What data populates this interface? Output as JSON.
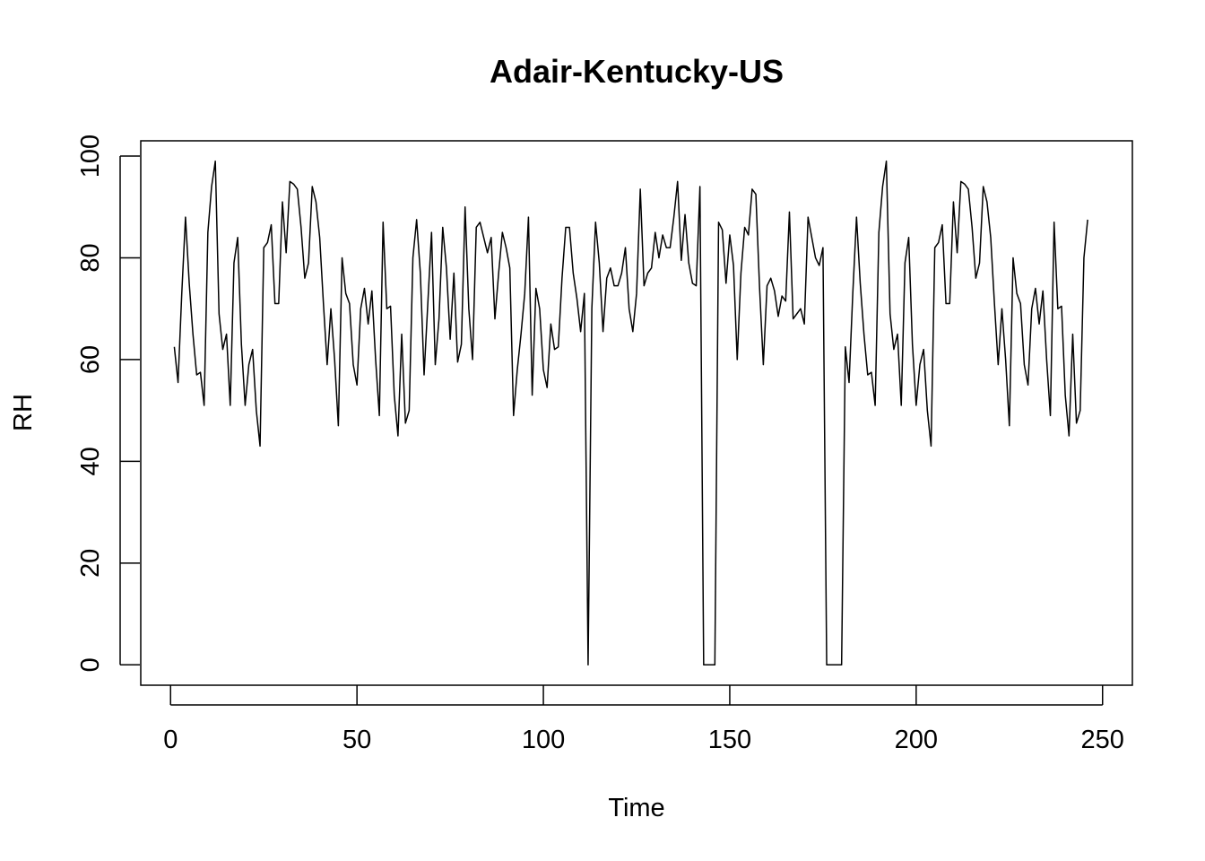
{
  "chart_data": {
    "type": "line",
    "title": "Adair-Kentucky-US",
    "xlabel": "Time",
    "ylabel": "RH",
    "xlim": [
      -8,
      258
    ],
    "ylim": [
      -4,
      103
    ],
    "xticks": [
      0,
      50,
      100,
      150,
      200,
      250
    ],
    "yticks": [
      0,
      20,
      40,
      60,
      80,
      100
    ],
    "xtick_labels": [
      "0",
      "50",
      "100",
      "150",
      "200",
      "250"
    ],
    "ytick_labels": [
      "0",
      "20",
      "40",
      "60",
      "80",
      "100"
    ],
    "grid": false,
    "legend": "none",
    "line_color": "#000000",
    "x_start": 1,
    "series": [
      {
        "values": [
          62.5,
          55.5,
          73,
          88,
          75,
          65,
          57,
          57.5,
          51,
          85,
          94,
          99,
          69,
          62,
          65,
          51,
          79,
          84,
          63,
          51,
          59,
          62,
          50,
          43,
          82,
          83,
          86.5,
          71,
          71,
          91,
          81,
          95,
          94.5,
          93.5,
          86,
          76,
          79,
          94,
          91,
          84,
          71,
          59,
          70,
          60,
          47,
          80,
          73,
          71,
          59,
          55,
          70,
          74,
          67,
          73.5,
          60,
          49,
          87,
          70,
          70.5,
          53,
          45,
          65,
          47.5,
          50,
          80,
          87.5,
          77,
          57,
          71,
          85,
          59,
          68,
          86,
          78,
          64,
          77,
          59.5,
          63,
          90,
          70,
          60,
          86,
          87,
          84,
          81,
          84,
          68,
          77,
          85,
          82,
          78,
          49,
          58,
          65,
          73,
          88,
          53,
          74,
          70,
          58,
          54.5,
          67,
          62,
          62.5,
          76,
          86,
          86,
          77,
          72,
          65.5,
          73,
          0,
          70,
          87,
          79,
          65.5,
          76,
          78,
          74.5,
          74.5,
          77,
          82,
          70,
          65.5,
          73,
          93.5,
          74.5,
          77,
          78,
          85,
          80,
          84.5,
          82,
          82,
          88,
          95,
          79.5,
          88.5,
          79,
          75,
          74.5,
          94,
          0,
          0,
          0,
          0,
          87,
          85.5,
          75,
          84.5,
          78.5,
          60,
          77,
          86,
          84.5,
          93.5,
          92.5,
          74,
          59,
          74.5,
          76,
          73.5,
          68.5,
          72.5,
          71.5,
          89,
          68,
          69,
          70,
          67,
          88,
          84,
          80,
          78.5,
          82,
          0,
          0,
          0,
          0,
          0,
          62.5,
          55.5,
          73,
          88,
          75,
          65,
          57,
          57.5,
          51,
          85,
          94,
          99,
          69,
          62,
          65,
          51,
          79,
          84,
          63,
          51,
          59,
          62,
          50,
          43,
          82,
          83,
          86.5,
          71,
          71,
          91,
          81,
          95,
          94.5,
          93.5,
          86,
          76,
          79,
          94,
          91,
          84,
          71,
          59,
          70,
          60,
          47,
          80,
          73,
          71,
          59,
          55,
          70,
          74,
          67,
          73.5,
          60,
          49,
          87,
          70,
          70.5,
          53,
          45,
          65,
          47.5,
          50,
          80,
          87.5
        ]
      }
    ]
  }
}
